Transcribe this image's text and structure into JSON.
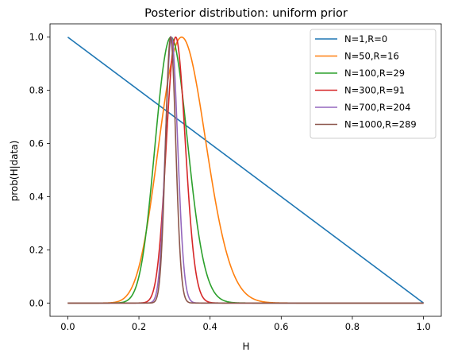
{
  "chart_data": {
    "type": "line",
    "title": "Posterior distribution: uniform prior",
    "xlabel": "H",
    "ylabel": "prob(H|data)",
    "xlim": [
      -0.05,
      1.05
    ],
    "ylim": [
      -0.05,
      1.05
    ],
    "xticks": [
      "0.0",
      "0.2",
      "0.4",
      "0.6",
      "0.8",
      "1.0"
    ],
    "yticks": [
      "0.0",
      "0.2",
      "0.4",
      "0.6",
      "0.8",
      "1.0"
    ],
    "grid": false,
    "legend_position": "top-right",
    "series": [
      {
        "name": "N=1,R=0",
        "N": 1,
        "R": 0,
        "color": "#1f77b4"
      },
      {
        "name": "N=50,R=16",
        "N": 50,
        "R": 16,
        "color": "#ff7f0e"
      },
      {
        "name": "N=100,R=29",
        "N": 100,
        "R": 29,
        "color": "#2ca02c"
      },
      {
        "name": "N=300,R=91",
        "N": 300,
        "R": 91,
        "color": "#d62728"
      },
      {
        "name": "N=700,R=204",
        "N": 700,
        "R": 204,
        "color": "#9467bd"
      },
      {
        "name": "N=1000,R=289",
        "N": 1000,
        "R": 289,
        "color": "#8c564b"
      }
    ]
  }
}
